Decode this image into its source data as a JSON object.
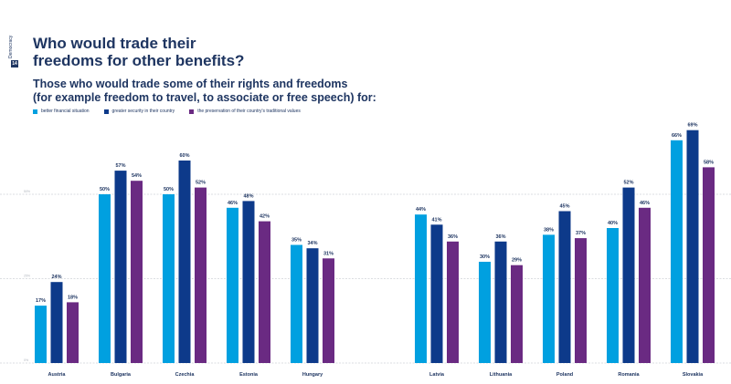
{
  "side_tag": {
    "text": "Democracy",
    "badge": "14"
  },
  "chart_data": {
    "type": "bar",
    "title": "Who would trade their freedoms for other benefits?",
    "title_lines": [
      "Who would trade their",
      "freedoms for other benefits?"
    ],
    "subtitle_lines": [
      "Those who would trade some of their rights and freedoms",
      "(for example freedom to travel, to associate or free speech) for:"
    ],
    "xlabel": "",
    "ylabel": "",
    "ylim": [
      0,
      75
    ],
    "grid": true,
    "yticks": [
      0,
      25,
      50
    ],
    "ytick_labels": [
      "0%",
      "25%",
      "50%"
    ],
    "legend_position": "top-left",
    "categories": [
      "Austria",
      "Bulgaria",
      "Czechia",
      "Estonia",
      "Hungary",
      "Latvia",
      "Lithuania",
      "Poland",
      "Romania",
      "Slovakia"
    ],
    "series": [
      {
        "name": "better financial situation",
        "color": "#00a0e0",
        "values": [
          17,
          50,
          50,
          46,
          35,
          44,
          30,
          38,
          40,
          66
        ]
      },
      {
        "name": "greater security in their country",
        "color": "#0d3a8a",
        "values": [
          24,
          57,
          60,
          48,
          34,
          41,
          36,
          45,
          52,
          69
        ]
      },
      {
        "name": "the preservation of their country's traditional values",
        "color": "#6a2a82",
        "values": [
          18,
          54,
          52,
          42,
          31,
          36,
          29,
          37,
          46,
          58
        ]
      }
    ],
    "value_suffix": "%"
  }
}
